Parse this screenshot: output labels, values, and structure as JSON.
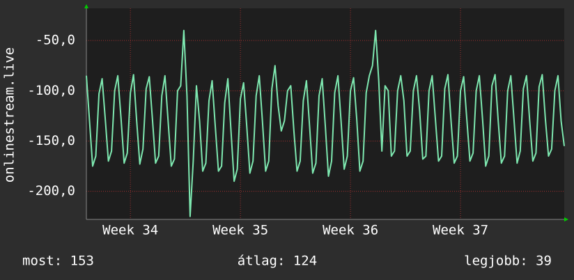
{
  "chart_data": {
    "type": "line",
    "y_label": "onlinestream.live",
    "ylim": [
      -228,
      -18
    ],
    "yticks": [
      {
        "value": -50,
        "label": "-50,0"
      },
      {
        "value": -100,
        "label": "-100,0"
      },
      {
        "value": -150,
        "label": "-150,0"
      },
      {
        "value": -200,
        "label": "-200,0"
      }
    ],
    "xlim": [
      0,
      152
    ],
    "xticks": [
      {
        "value": 14,
        "label": "Week 34"
      },
      {
        "value": 49,
        "label": "Week 35"
      },
      {
        "value": 84,
        "label": "Week 36"
      },
      {
        "value": 119,
        "label": "Week 37"
      }
    ],
    "grid": true,
    "color": "#7ee8b0",
    "values": [
      -85,
      -130,
      -175,
      -165,
      -103,
      -88,
      -128,
      -170,
      -160,
      -100,
      -85,
      -126,
      -172,
      -162,
      -102,
      -84,
      -130,
      -173,
      -158,
      -98,
      -86,
      -128,
      -172,
      -165,
      -105,
      -85,
      -130,
      -175,
      -168,
      -100,
      -95,
      -40,
      -105,
      -225,
      -170,
      -95,
      -130,
      -180,
      -172,
      -110,
      -90,
      -135,
      -180,
      -175,
      -112,
      -88,
      -140,
      -190,
      -178,
      -108,
      -92,
      -135,
      -182,
      -170,
      -105,
      -85,
      -130,
      -180,
      -170,
      -98,
      -75,
      -115,
      -140,
      -130,
      -100,
      -95,
      -140,
      -180,
      -170,
      -110,
      -90,
      -135,
      -182,
      -172,
      -105,
      -88,
      -135,
      -185,
      -170,
      -102,
      -85,
      -130,
      -178,
      -165,
      -100,
      -87,
      -128,
      -180,
      -170,
      -102,
      -85,
      -75,
      -40,
      -90,
      -160,
      -95,
      -100,
      -165,
      -160,
      -100,
      -85,
      -110,
      -165,
      -160,
      -100,
      -85,
      -120,
      -168,
      -165,
      -100,
      -85,
      -128,
      -170,
      -165,
      -98,
      -84,
      -130,
      -172,
      -165,
      -100,
      -86,
      -128,
      -170,
      -162,
      -100,
      -85,
      -128,
      -175,
      -165,
      -95,
      -84,
      -130,
      -172,
      -165,
      -100,
      -85,
      -128,
      -172,
      -160,
      -98,
      -85,
      -130,
      -170,
      -162,
      -96,
      -84,
      -128,
      -165,
      -158,
      -100,
      -85,
      -130,
      -155
    ],
    "annotations": [
      "most: 153",
      "átlag: 124",
      "legjobb: 39"
    ]
  }
}
